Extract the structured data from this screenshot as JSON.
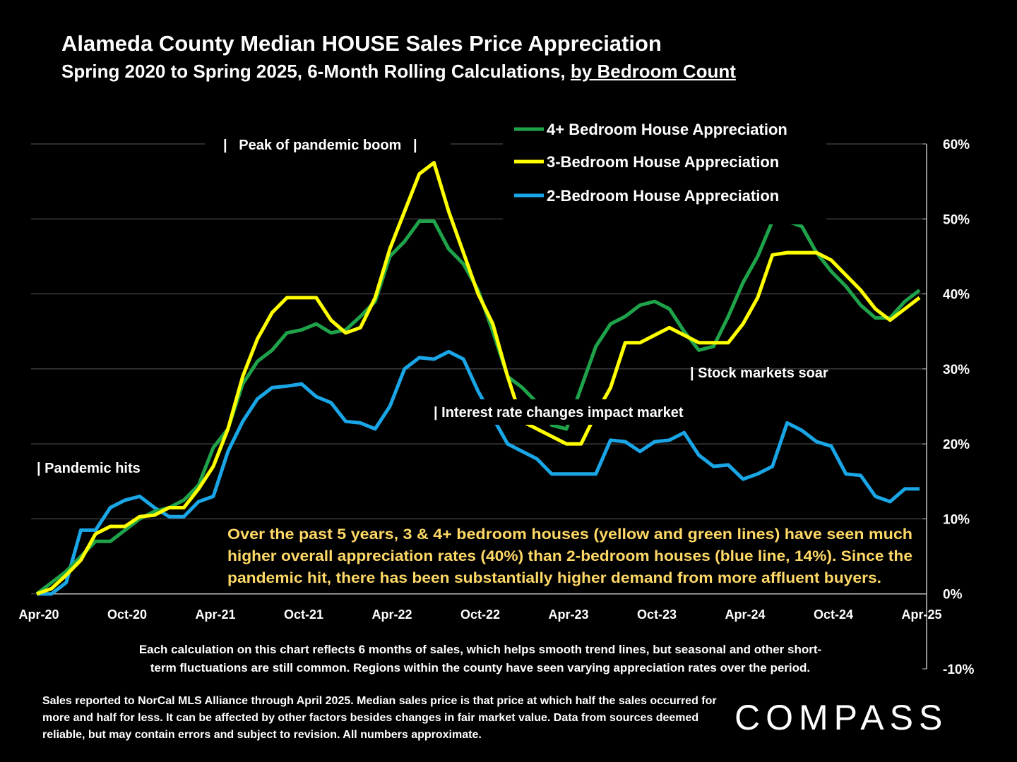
{
  "title": "Alameda County Median HOUSE Sales Price Appreciation",
  "subtitle_main": "Spring 2020 to Spring 2025, 6-Month Rolling Calculations, ",
  "subtitle_underlined": "by Bedroom Count",
  "annotations": {
    "peak": "|   Peak of pandemic boom   |",
    "pandemic": "| Pandemic hits",
    "interest": "| Interest rate changes impact market",
    "stocks": "| Stock markets soar"
  },
  "callout": [
    "Over the past 5 years, 3 & 4+ bedroom houses (yellow and green lines) have seen much",
    "higher overall appreciation rates (40%) than 2-bedroom houses (blue line, 14%). Since the",
    "pandemic hit, there has been substantially higher demand from more affluent buyers."
  ],
  "footnote": [
    "Each calculation on this chart reflects 6 months of sales, which helps smooth trend lines, but seasonal and other short-",
    "term fluctuations are still common. Regions within the county have seen varying appreciation rates over the period."
  ],
  "source": "Sales reported to NorCal MLS Alliance through April 2025. Median sales price is that price at which half the sales occurred for more and half for less. It can be affected by other factors besides changes in fair market value. Data from sources deemed reliable, but may contain errors and subject to revision. All numbers approximate.",
  "logo": "COMPASS",
  "chart_data": {
    "type": "line",
    "title": "Alameda County Median HOUSE Sales Price Appreciation",
    "x_tick_labels": [
      "Apr-20",
      "Oct-20",
      "Apr-21",
      "Oct-21",
      "Apr-22",
      "Oct-22",
      "Apr-23",
      "Oct-23",
      "Apr-24",
      "Oct-24",
      "Apr-25"
    ],
    "y_tick_labels": [
      "60%",
      "50%",
      "40%",
      "30%",
      "20%",
      "10%",
      "0%",
      "-10%"
    ],
    "ylim": [
      -10,
      60
    ],
    "grid": true,
    "legend_position": "top-right",
    "x_months": 61,
    "series": [
      {
        "name": "4+ Bedroom House Appreciation",
        "color": "#1fa34a",
        "values": [
          0,
          1.5,
          3,
          5,
          7,
          7,
          8.5,
          10,
          11,
          11.5,
          12.5,
          14.5,
          19.5,
          22,
          28,
          31,
          32.5,
          34.8,
          35.2,
          36,
          34.8,
          35.2,
          37,
          39,
          45,
          47,
          49.7,
          49.7,
          46,
          44,
          40.5,
          35,
          29,
          27.5,
          25.5,
          22.5,
          22,
          27.5,
          33,
          36,
          37,
          38.5,
          39,
          38,
          35,
          32.5,
          33,
          37,
          41.5,
          45,
          49.7,
          49.7,
          49,
          45.5,
          43,
          41,
          38.5,
          36.8,
          36.8,
          39,
          40.5
        ]
      },
      {
        "name": "3-Bedroom House Appreciation",
        "color": "#ffff00",
        "values": [
          0,
          0.7,
          2.5,
          4.5,
          8,
          9,
          9,
          10.3,
          10.5,
          11.5,
          11.5,
          14,
          17,
          22,
          29,
          34,
          37.5,
          39.5,
          39.5,
          39.5,
          36.5,
          34.8,
          35.5,
          39.5,
          46,
          51,
          56,
          57.5,
          51,
          45.5,
          40,
          36,
          29,
          23,
          22,
          21,
          20,
          20,
          24,
          27.5,
          33.5,
          33.5,
          34.5,
          35.5,
          34.5,
          33.5,
          33.5,
          33.5,
          36,
          39.5,
          45.2,
          45.5,
          45.5,
          45.5,
          44.5,
          42.5,
          40.5,
          38,
          36.5,
          38,
          39.5
        ]
      },
      {
        "name": "2-Bedroom House Appreciation",
        "color": "#1aa6e6",
        "values": [
          0,
          0,
          1.5,
          8.5,
          8.5,
          11.5,
          12.5,
          13,
          11.5,
          10.3,
          10.3,
          12.3,
          13,
          19,
          23,
          26,
          27.5,
          27.7,
          28,
          26.3,
          25.5,
          23,
          22.8,
          22,
          25,
          30,
          31.5,
          31.3,
          32.3,
          31.3,
          27,
          23.5,
          20,
          19,
          18,
          16,
          16,
          16,
          16,
          20.5,
          20.3,
          19,
          20.3,
          20.5,
          21.5,
          18.5,
          17,
          17.2,
          15.3,
          16,
          17,
          22.8,
          21.8,
          20.3,
          19.7,
          16,
          15.8,
          13,
          12.3,
          14,
          14
        ]
      }
    ]
  }
}
